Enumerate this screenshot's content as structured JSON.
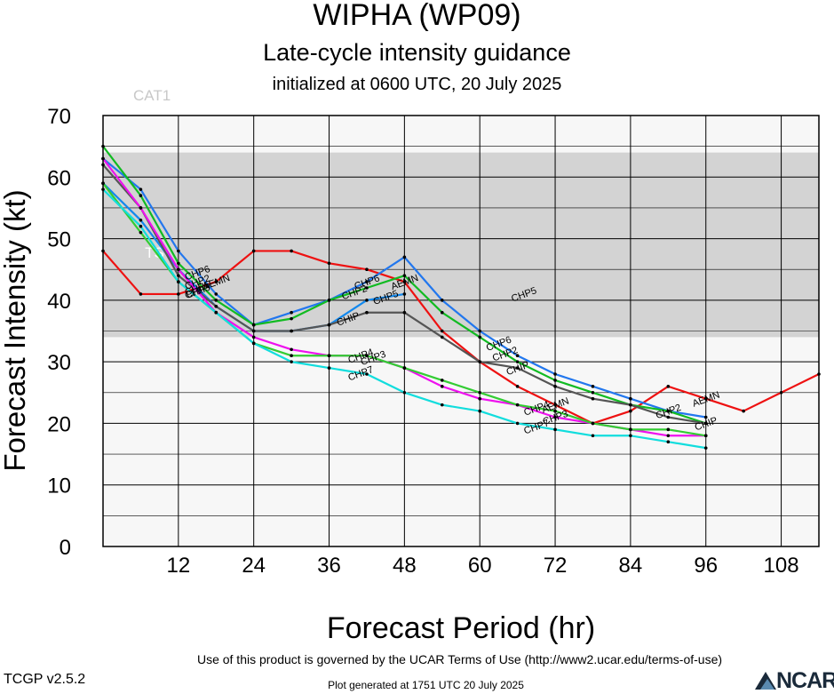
{
  "header": {
    "title": "WIPHA (WP09)",
    "subtitle": "Late-cycle intensity guidance",
    "init": "initialized at 0600 UTC, 20 July 2025"
  },
  "footer": {
    "terms": "Use of this product is governed by the UCAR Terms of Use (http://www2.ucar.edu/terms-of-use)",
    "version": "TCGP v2.5.2",
    "generated": "Plot generated at 1751 UTC   20 July 2025",
    "logo_text": "NCAR"
  },
  "chart_data": {
    "type": "line",
    "xlabel": "Forecast Period (hr)",
    "ylabel": "Forecast Intensity (kt)",
    "xlim": [
      0,
      114
    ],
    "ylim": [
      0,
      70
    ],
    "xticks": [
      12,
      24,
      36,
      48,
      60,
      72,
      84,
      96,
      108
    ],
    "yticks": [
      0,
      10,
      20,
      30,
      40,
      50,
      60,
      70
    ],
    "grid": true,
    "bands": [
      {
        "label": "TS",
        "from": 34,
        "to": 64,
        "color": "#d3d3d3"
      },
      {
        "label": "CAT1",
        "from": 64,
        "to": 70,
        "color": "#f7f7f7"
      }
    ],
    "series": [
      {
        "name": "AEMN",
        "color": "#ee1111",
        "x": [
          0,
          6,
          12,
          18,
          24,
          30,
          36,
          42,
          48,
          54,
          60,
          66,
          72,
          78,
          84,
          90,
          96,
          102,
          108,
          114
        ],
        "y": [
          48,
          41,
          41,
          43,
          48,
          48,
          46,
          45,
          43,
          35,
          30,
          26,
          23,
          20,
          22,
          26,
          24,
          22,
          25,
          28
        ],
        "labels_at": [
          18,
          48,
          72,
          96
        ]
      },
      {
        "name": "CHP6",
        "color": "#2277ee",
        "x": [
          0,
          6,
          12,
          18,
          24,
          30,
          36,
          42,
          48,
          54,
          60,
          66,
          72,
          78,
          84,
          90,
          96
        ],
        "y": [
          63,
          58,
          48,
          41,
          36,
          38,
          40,
          43,
          47,
          40,
          35,
          31,
          28,
          26,
          24,
          22,
          21
        ],
        "labels_at": [
          15,
          42,
          63
        ]
      },
      {
        "name": "CHP2",
        "color": "#11bb22",
        "x": [
          0,
          6,
          12,
          18,
          24,
          30,
          36,
          42,
          48,
          54,
          60,
          66,
          72,
          78,
          84,
          90,
          96
        ],
        "y": [
          65,
          57,
          46,
          40,
          36,
          37,
          40,
          42,
          44,
          38,
          34,
          30,
          27,
          25,
          23,
          22,
          20
        ],
        "labels_at": [
          15,
          40,
          64,
          90
        ]
      },
      {
        "name": "CHP5",
        "color": "#1188ee",
        "x": [
          0,
          6,
          12,
          18,
          24,
          30,
          36,
          42,
          48
        ],
        "y": [
          59,
          53,
          45,
          39,
          35,
          35,
          36,
          40,
          41
        ],
        "labels_at": [
          15,
          45,
          67
        ]
      },
      {
        "name": "CHIP",
        "color": "#555555",
        "x": [
          0,
          6,
          12,
          18,
          24,
          30,
          36,
          42,
          48,
          54,
          60,
          66,
          72,
          78,
          84,
          90,
          96
        ],
        "y": [
          62,
          55,
          44,
          39,
          35,
          35,
          36,
          38,
          38,
          34,
          30,
          29,
          26,
          24,
          23,
          21,
          20
        ],
        "labels_at": [
          15,
          39,
          66,
          96
        ]
      },
      {
        "name": "CHP3",
        "color": "#ee11ee",
        "x": [
          0,
          6,
          12,
          18,
          24,
          30,
          36,
          42,
          48,
          54,
          60,
          66,
          72,
          78,
          84,
          90,
          96
        ],
        "y": [
          63,
          55,
          45,
          38,
          34,
          32,
          31,
          31,
          29,
          26,
          24,
          23,
          21,
          20,
          19,
          18,
          18
        ],
        "labels_at": [
          15,
          43,
          72
        ]
      },
      {
        "name": "CHP4",
        "color": "#33cc33",
        "x": [
          0,
          6,
          12,
          18,
          24,
          30,
          36,
          42,
          48,
          54,
          60,
          66,
          72,
          78,
          84,
          90,
          96
        ],
        "y": [
          59,
          51,
          43,
          38,
          33,
          31,
          31,
          31,
          29,
          27,
          25,
          23,
          22,
          20,
          19,
          19,
          18
        ],
        "labels_at": [
          41,
          69
        ]
      },
      {
        "name": "CHP7",
        "color": "#11dddd",
        "x": [
          0,
          6,
          12,
          18,
          24,
          30,
          36,
          42,
          48,
          54,
          60,
          66,
          72,
          78,
          84,
          90,
          96
        ],
        "y": [
          58,
          52,
          43,
          38,
          33,
          30,
          29,
          28,
          25,
          23,
          22,
          20,
          19,
          18,
          18,
          17,
          16
        ],
        "labels_at": [
          41,
          69
        ]
      }
    ]
  }
}
